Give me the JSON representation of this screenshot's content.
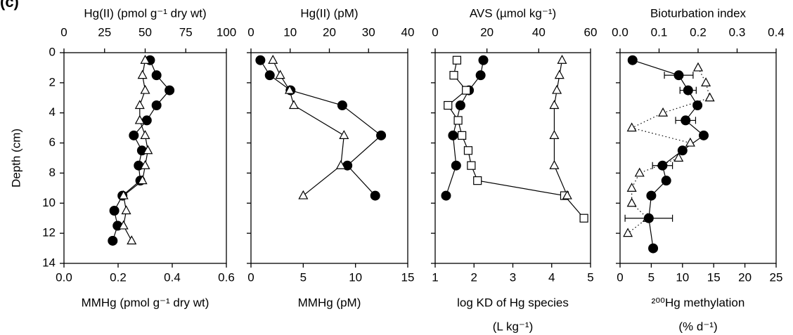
{
  "chart_data": [
    {
      "type": "line",
      "x2label": "Hg(II) (pmol g⁻¹ dry wt)",
      "xlabel": "MMHg (pmol g⁻¹ dry wt)",
      "ylabel": "Depth (cm)",
      "x2lim": [
        0,
        100
      ],
      "x2ticks": [
        0,
        25,
        50,
        75,
        100
      ],
      "xlim": [
        0,
        0.6
      ],
      "xticks": [
        {
          "value": 0,
          "label": "0.0"
        },
        0.2,
        0.4,
        0.6
      ],
      "ylim": [
        0,
        14
      ],
      "yticks": [
        0,
        2,
        4,
        6,
        8,
        10,
        12,
        14
      ],
      "series": [
        {
          "axis": "x2",
          "marker": "circle",
          "line": "solid",
          "color": "#000000",
          "depth": [
            0.5,
            1.5,
            2.5,
            3.5,
            4.5,
            5.5,
            6.5,
            7.5,
            8.5,
            9.5,
            10.5,
            11.5,
            12.5
          ],
          "values": [
            53,
            57,
            65,
            57,
            51,
            43,
            48,
            46,
            47,
            36,
            31,
            33,
            30
          ]
        },
        {
          "axis": "x",
          "marker": "triangle",
          "line": "solid",
          "color": "#000000",
          "depth": [
            0.5,
            1.5,
            2.5,
            3.5,
            4.5,
            5.5,
            6.5,
            7.5,
            8.5,
            9.5,
            10.5,
            11.5,
            12.5
          ],
          "values": [
            0.3,
            0.29,
            0.3,
            0.28,
            0.28,
            0.3,
            0.31,
            0.3,
            0.29,
            0.22,
            0.23,
            0.22,
            0.25
          ]
        }
      ]
    },
    {
      "type": "line",
      "x2label": "Hg(II) (pM)",
      "xlabel": "MMHg (pM)",
      "x2lim": [
        0,
        40
      ],
      "x2ticks": [
        0,
        10,
        20,
        30,
        40
      ],
      "xlim": [
        0,
        15
      ],
      "xticks": [
        0,
        5,
        10,
        15
      ],
      "ylim": [
        0,
        14
      ],
      "yticks": [
        0,
        2,
        4,
        6,
        8,
        10,
        12,
        14
      ],
      "series": [
        {
          "axis": "x2",
          "marker": "circle",
          "line": "solid",
          "color": "#000000",
          "depth": [
            0.5,
            1.5,
            2.5,
            3.5,
            5.5,
            7.5,
            9.5
          ],
          "values": [
            2.4,
            4.8,
            10.1,
            23.3,
            33.2,
            24.6,
            31.7
          ]
        },
        {
          "axis": "x",
          "marker": "triangle",
          "line": "solid",
          "color": "#000000",
          "depth": [
            0.5,
            1.5,
            2.5,
            3.5,
            5.5,
            7.5,
            9.5
          ],
          "values": [
            2.1,
            2.8,
            3.7,
            4.1,
            8.9,
            8.6,
            5.0
          ]
        }
      ]
    },
    {
      "type": "line",
      "x2label": "AVS (µmol kg⁻¹)",
      "xlabel": "log KD of Hg species",
      "xlabel2": "(L kg⁻¹)",
      "x2lim": [
        0,
        60
      ],
      "x2ticks": [
        0,
        20,
        40,
        60
      ],
      "xlim": [
        1,
        5
      ],
      "xticks": [
        1,
        2,
        3,
        4,
        5
      ],
      "ylim": [
        0,
        14
      ],
      "yticks": [
        0,
        2,
        4,
        6,
        8,
        10,
        12,
        14
      ],
      "series": [
        {
          "axis": "x",
          "marker": "circle",
          "line": "solid",
          "color": "#000000",
          "depth": [
            0.5,
            1.5,
            2.5,
            3.5,
            5.5,
            7.5,
            9.5
          ],
          "values": [
            2.24,
            2.17,
            1.87,
            1.65,
            1.46,
            1.54,
            1.28
          ]
        },
        {
          "axis": "x",
          "marker": "square",
          "line": "solid",
          "color": "#000000",
          "depth": [
            0.5,
            1.5,
            2.5,
            3.5,
            4.5,
            5.5,
            6.5,
            7.5,
            8.5,
            9.5,
            11
          ],
          "values": [
            1.56,
            1.48,
            1.8,
            1.33,
            1.59,
            1.69,
            1.85,
            1.93,
            2.09,
            4.33,
            4.83
          ]
        },
        {
          "axis": "x2",
          "marker": "triangle",
          "line": "solid",
          "color": "#000000",
          "depth": [
            0.5,
            1.5,
            2.5,
            3.5,
            5.5,
            7.5,
            9.5
          ],
          "values": [
            49,
            48,
            47,
            46,
            46,
            46,
            51
          ]
        }
      ]
    },
    {
      "type": "line",
      "x2label": "Bioturbation index",
      "xlabel": "²⁰⁰Hg methylation",
      "xlabel2": "(% d⁻¹)",
      "x2lim": [
        0,
        0.4
      ],
      "x2ticks": [
        {
          "value": 0,
          "label": "0.0"
        },
        0.1,
        0.2,
        0.3,
        0.4
      ],
      "xlim": [
        0,
        25
      ],
      "xticks": [
        0,
        5,
        10,
        15,
        20,
        25
      ],
      "ylim": [
        0,
        14
      ],
      "yticks": [
        0,
        2,
        4,
        6,
        8,
        10,
        12,
        14
      ],
      "series": [
        {
          "axis": "x2",
          "marker": "triangle",
          "line": "dotted",
          "color": "#000000",
          "depth": [
            1,
            2,
            3,
            4,
            5,
            6,
            7,
            8,
            9,
            10,
            11,
            12
          ],
          "values": [
            0.2,
            0.22,
            0.23,
            0.11,
            0.03,
            0.18,
            0.15,
            0.05,
            0.03,
            0.03,
            0.07,
            0.02
          ]
        },
        {
          "axis": "x",
          "marker": "circle",
          "line": "solid",
          "color": "#000000",
          "depth": [
            0.5,
            1.5,
            2.5,
            3.5,
            4.5,
            5.5,
            6.5,
            7.5,
            8.5,
            9.5,
            11,
            13
          ],
          "values": [
            2.0,
            9.4,
            10.9,
            12.4,
            10.5,
            13.4,
            10.0,
            6.8,
            7.4,
            5.0,
            4.6,
            5.3
          ],
          "errors": [
            null,
            2.3,
            1.3,
            null,
            1.6,
            null,
            null,
            1.6,
            null,
            null,
            3.8,
            null
          ]
        }
      ]
    }
  ],
  "panel_label": "(c)"
}
